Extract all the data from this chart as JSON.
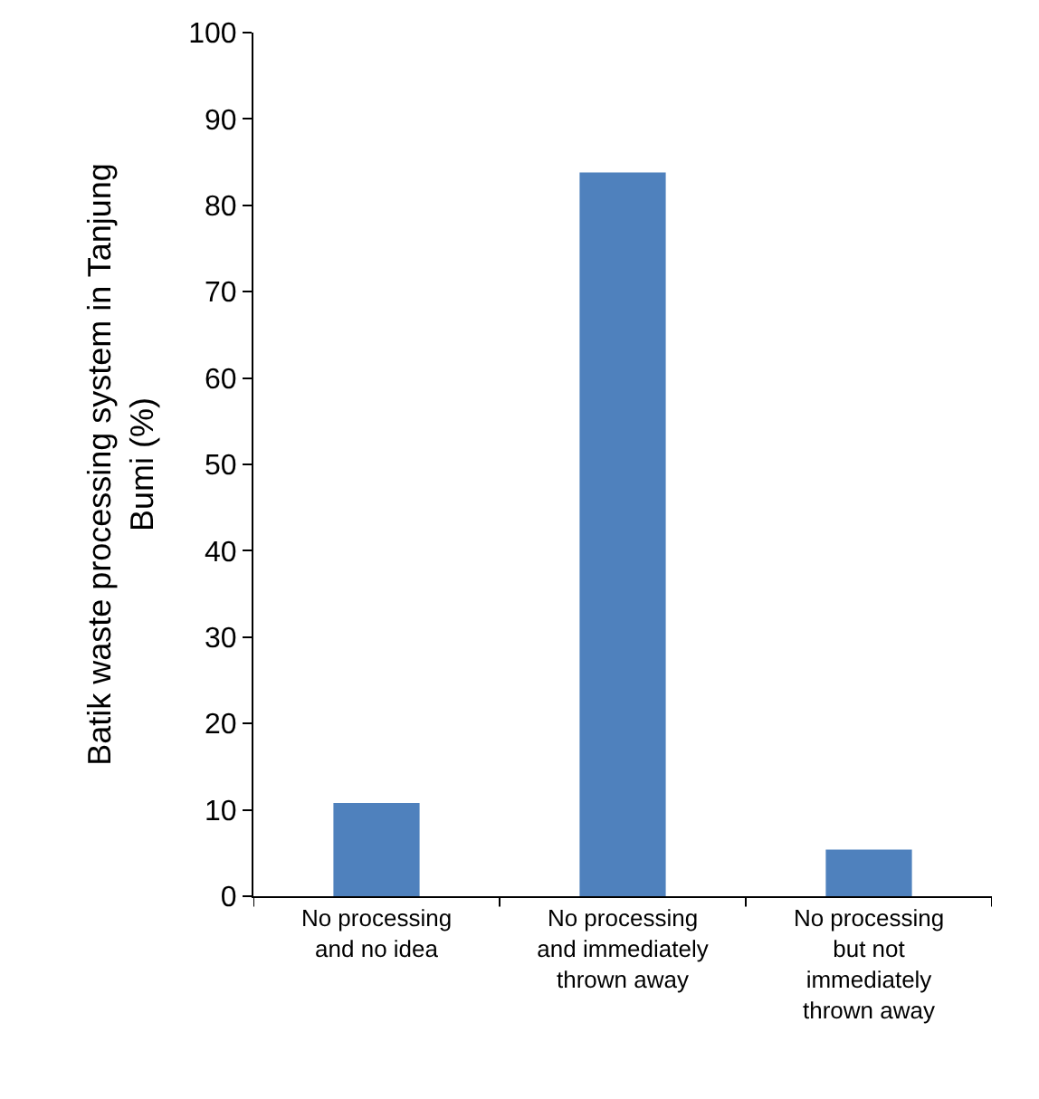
{
  "chart_data": {
    "type": "bar",
    "ylabel": "Batik waste processing system in Tanjung Bumi (%)",
    "categories": [
      "No processing and no idea",
      "No processing and immediately thrown away",
      "No processing but not immediately thrown away"
    ],
    "values": [
      10.8,
      83.8,
      5.4
    ],
    "color": "#4f81bd",
    "ylim": [
      0,
      100
    ],
    "yticks": [
      0,
      10,
      20,
      30,
      40,
      50,
      60,
      70,
      80,
      90,
      100
    ],
    "grid": false
  }
}
